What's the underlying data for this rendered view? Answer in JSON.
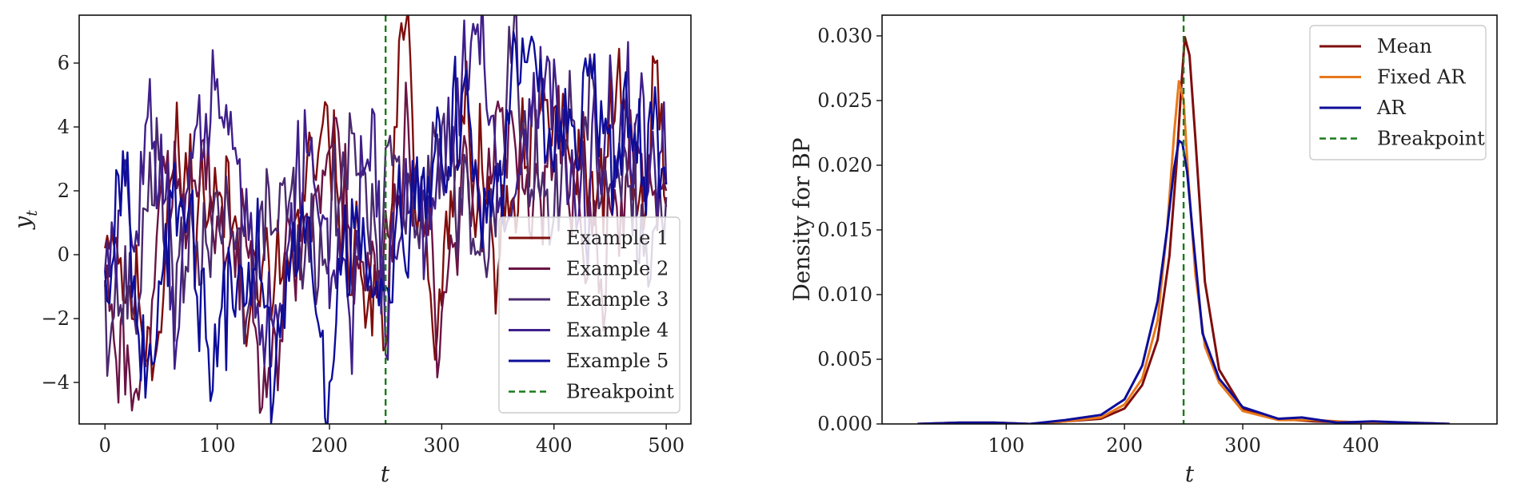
{
  "chart_data": [
    {
      "type": "line",
      "xlabel": "t",
      "ylabel": "y",
      "ylabel_subscript": "t",
      "xlim": [
        -23,
        522
      ],
      "ylim": [
        -5.3,
        7.5
      ],
      "xticks": [
        0,
        100,
        200,
        300,
        400,
        500
      ],
      "xtick_labels": [
        "0",
        "100",
        "200",
        "300",
        "400",
        "500"
      ],
      "yticks": [
        -4,
        -2,
        0,
        2,
        4,
        6
      ],
      "ytick_labels": [
        "−4",
        "−2",
        "0",
        "2",
        "4",
        "6"
      ],
      "grid": false,
      "legend_position": "lower-right",
      "breakpoint": {
        "name": "Breakpoint",
        "x": 250,
        "color": "#1a7a1a"
      },
      "series": [
        {
          "name": "Example 1",
          "color": "#7f0d0d",
          "seed": 11,
          "keypoints": [
            [
              0,
              0.2
            ],
            [
              5,
              2.0
            ],
            [
              20,
              -1.0
            ],
            [
              45,
              -2.2
            ],
            [
              60,
              2.5
            ],
            [
              100,
              1.8
            ],
            [
              150,
              -1.5
            ],
            [
              200,
              3.2
            ],
            [
              230,
              -1.0
            ],
            [
              248,
              -3.0
            ],
            [
              251,
              -4.7
            ],
            [
              258,
              4.0
            ],
            [
              262,
              6.7
            ],
            [
              300,
              -1.6
            ],
            [
              320,
              4.1
            ],
            [
              350,
              -0.5
            ],
            [
              400,
              4.6
            ],
            [
              430,
              1.2
            ],
            [
              460,
              4.5
            ],
            [
              480,
              0.8
            ],
            [
              490,
              6.0
            ],
            [
              500,
              1.5
            ]
          ]
        },
        {
          "name": "Example 2",
          "color": "#6a1445",
          "seed": 23,
          "keypoints": [
            [
              0,
              -1.0
            ],
            [
              28,
              -4.2
            ],
            [
              50,
              2.2
            ],
            [
              100,
              1.2
            ],
            [
              150,
              -2.2
            ],
            [
              200,
              3.3
            ],
            [
              245,
              -1.4
            ],
            [
              252,
              0.6
            ],
            [
              270,
              4.2
            ],
            [
              300,
              -1.8
            ],
            [
              350,
              4.8
            ],
            [
              380,
              0.5
            ],
            [
              410,
              3.6
            ],
            [
              440,
              -1.2
            ],
            [
              470,
              3.4
            ],
            [
              500,
              2.0
            ]
          ]
        },
        {
          "name": "Example 3",
          "color": "#4a2a6e",
          "seed": 37,
          "keypoints": [
            [
              0,
              -0.8
            ],
            [
              30,
              -1.5
            ],
            [
              40,
              3.2
            ],
            [
              70,
              -1.5
            ],
            [
              100,
              2.0
            ],
            [
              130,
              -1.2
            ],
            [
              160,
              2.4
            ],
            [
              190,
              -1.0
            ],
            [
              220,
              3.8
            ],
            [
              245,
              -1.0
            ],
            [
              256,
              2.8
            ],
            [
              280,
              0.2
            ],
            [
              305,
              4.4
            ],
            [
              330,
              0.0
            ],
            [
              362,
              6.0
            ],
            [
              400,
              1.2
            ],
            [
              430,
              3.6
            ],
            [
              470,
              0.6
            ],
            [
              500,
              1.8
            ]
          ]
        },
        {
          "name": "Example 4",
          "color": "#3f1f8a",
          "seed": 51,
          "keypoints": [
            [
              0,
              -0.5
            ],
            [
              25,
              1.0
            ],
            [
              40,
              5.5
            ],
            [
              60,
              -1.0
            ],
            [
              100,
              5.5
            ],
            [
              140,
              -2.2
            ],
            [
              180,
              3.2
            ],
            [
              215,
              -1.6
            ],
            [
              240,
              4.4
            ],
            [
              251,
              -2.6
            ],
            [
              268,
              3.0
            ],
            [
              290,
              0.8
            ],
            [
              330,
              6.9
            ],
            [
              360,
              1.2
            ],
            [
              393,
              6.7
            ],
            [
              420,
              0.8
            ],
            [
              455,
              3.5
            ],
            [
              500,
              2.2
            ]
          ]
        },
        {
          "name": "Example 5",
          "color": "#0d0d9a",
          "seed": 67,
          "keypoints": [
            [
              0,
              -0.5
            ],
            [
              15,
              3.6
            ],
            [
              40,
              -2.8
            ],
            [
              70,
              1.2
            ],
            [
              100,
              -3.5
            ],
            [
              135,
              1.0
            ],
            [
              150,
              -4.6
            ],
            [
              175,
              1.2
            ],
            [
              200,
              -4.0
            ],
            [
              225,
              2.0
            ],
            [
              250,
              -1.0
            ],
            [
              262,
              2.8
            ],
            [
              285,
              0.8
            ],
            [
              312,
              6.2
            ],
            [
              340,
              1.0
            ],
            [
              373,
              6.3
            ],
            [
              400,
              2.6
            ],
            [
              425,
              5.8
            ],
            [
              460,
              2.5
            ],
            [
              500,
              2.2
            ]
          ]
        }
      ]
    },
    {
      "type": "line",
      "xlabel": "t",
      "ylabel": "Density for BP",
      "xlim": [
        -5,
        515
      ],
      "ylim": [
        0,
        0.0316
      ],
      "xticks": [
        100,
        200,
        300,
        400
      ],
      "xtick_labels": [
        "100",
        "200",
        "300",
        "400"
      ],
      "yticks": [
        0,
        0.005,
        0.01,
        0.015,
        0.02,
        0.025,
        0.03
      ],
      "ytick_labels": [
        "0.000",
        "0.005",
        "0.010",
        "0.015",
        "0.020",
        "0.025",
        "0.030"
      ],
      "grid": false,
      "legend_position": "top-right",
      "breakpoint": {
        "name": "Breakpoint",
        "x": 250,
        "color": "#1a7a1a"
      },
      "series": [
        {
          "name": "Mean",
          "color": "#7f0d0d",
          "x": [
            25,
            60,
            90,
            120,
            150,
            180,
            200,
            215,
            228,
            238,
            244,
            248,
            251,
            255,
            260,
            268,
            280,
            300,
            330,
            360,
            400,
            440,
            475
          ],
          "y": [
            0.0,
            0.0001,
            0.0001,
            0.0,
            0.0002,
            0.0004,
            0.0012,
            0.003,
            0.0065,
            0.013,
            0.02,
            0.026,
            0.0299,
            0.0285,
            0.022,
            0.011,
            0.0042,
            0.0012,
            0.0004,
            0.0002,
            0.0001,
            0.0001,
            0.0
          ]
        },
        {
          "name": "Fixed AR",
          "color": "#e8781a",
          "x": [
            25,
            60,
            90,
            120,
            150,
            180,
            200,
            215,
            228,
            236,
            242,
            246,
            250,
            254,
            260,
            268,
            280,
            300,
            330,
            360,
            400,
            440,
            475
          ],
          "y": [
            0.0,
            0.0001,
            0.0001,
            0.0,
            0.0002,
            0.0005,
            0.0015,
            0.0035,
            0.008,
            0.015,
            0.0225,
            0.0265,
            0.025,
            0.019,
            0.0115,
            0.006,
            0.0032,
            0.001,
            0.0003,
            0.0003,
            0.0001,
            0.0001,
            0.0
          ]
        },
        {
          "name": "AR",
          "color": "#0d0d9a",
          "x": [
            25,
            60,
            90,
            120,
            150,
            180,
            200,
            215,
            228,
            236,
            242,
            246,
            249,
            253,
            258,
            266,
            280,
            300,
            330,
            350,
            380,
            410,
            440,
            475
          ],
          "y": [
            0.0,
            0.0001,
            0.0001,
            0.0,
            0.0003,
            0.0007,
            0.0019,
            0.0045,
            0.0095,
            0.015,
            0.0198,
            0.0219,
            0.0217,
            0.0195,
            0.0145,
            0.007,
            0.0035,
            0.0013,
            0.0004,
            0.0005,
            0.0001,
            0.0002,
            0.0001,
            0.0
          ]
        }
      ]
    }
  ]
}
